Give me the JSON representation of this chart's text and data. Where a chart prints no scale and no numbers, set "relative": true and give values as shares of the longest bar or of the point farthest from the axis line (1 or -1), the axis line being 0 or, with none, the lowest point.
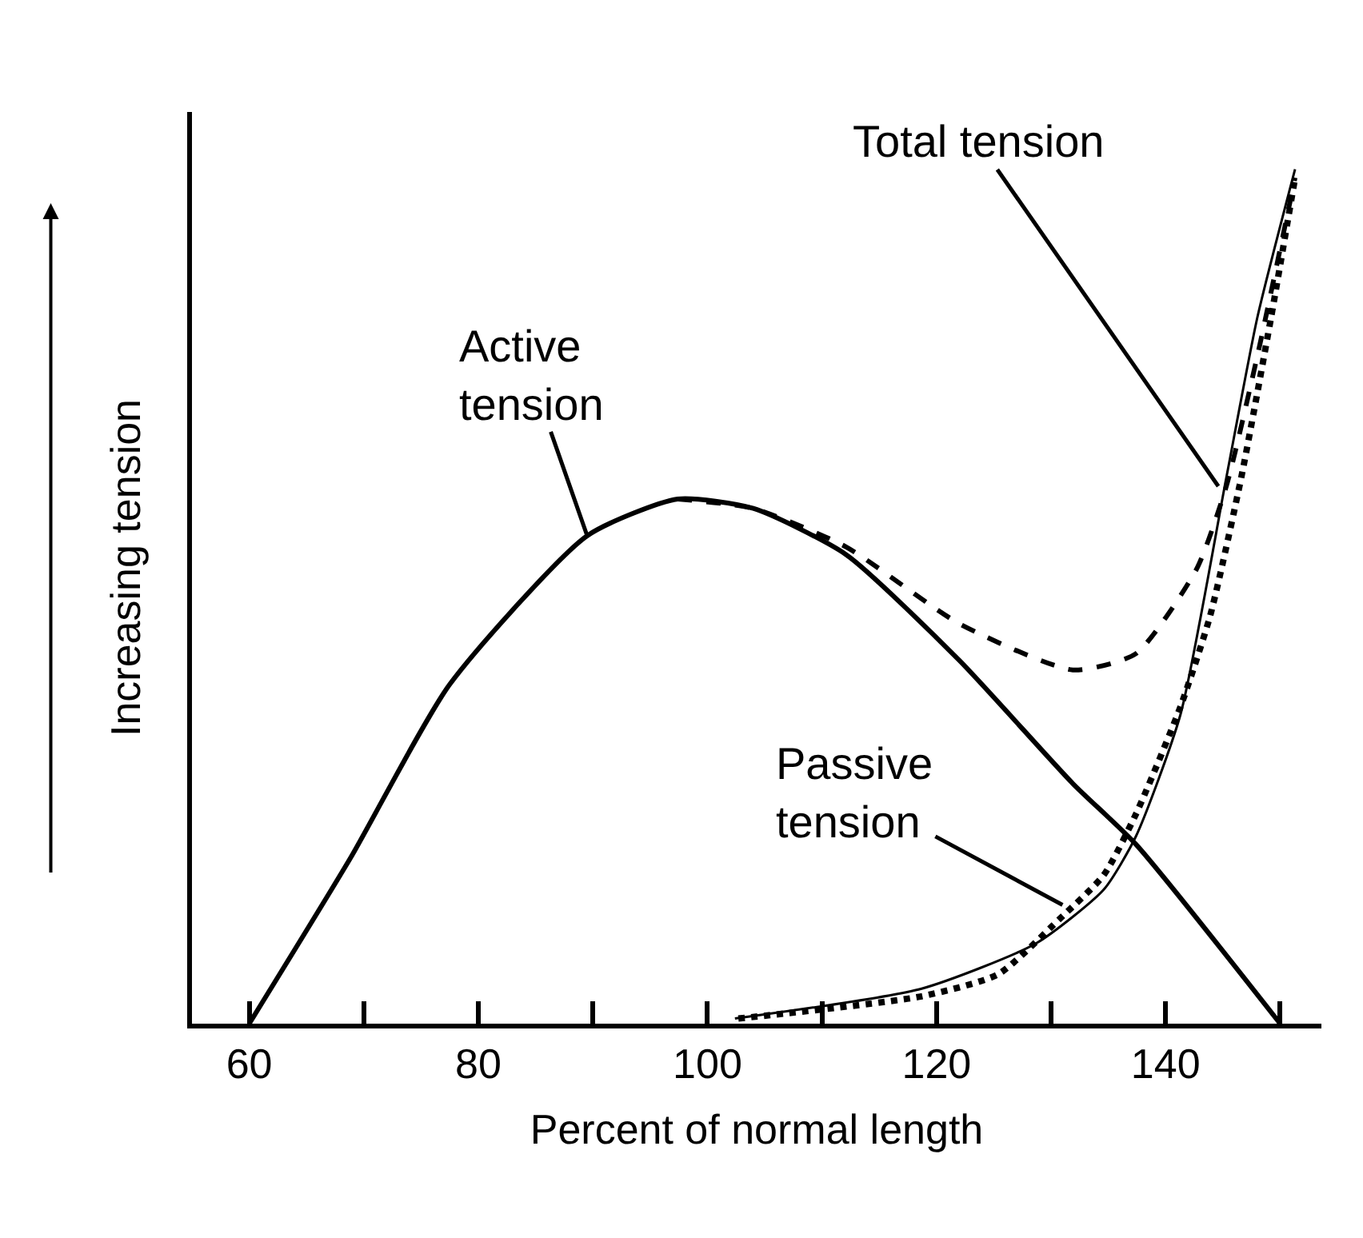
{
  "chart_data": {
    "type": "line",
    "relative": true,
    "xlabel": "Percent of normal length",
    "ylabel": "Increasing tension",
    "xlim": [
      55,
      153.6
    ],
    "xticks": [
      60,
      {
        "value": 70,
        "label": null
      },
      80,
      {
        "value": 90,
        "label": null
      },
      100,
      {
        "value": 110,
        "label": null
      },
      120,
      {
        "value": 130,
        "label": null
      },
      140,
      {
        "value": 150,
        "label": null
      }
    ],
    "marker": "none",
    "series": [
      {
        "color": "#000000",
        "line_style": "solid",
        "x": [
          60,
          68.8,
          77.5,
          89.5,
          97.4,
          104,
          112.1,
          122,
          131.9,
          137.4,
          150
        ],
        "values": [
          0,
          0.193,
          0.397,
          0.571,
          0.614,
          0.603,
          0.549,
          0.425,
          0.281,
          0.21,
          0
        ]
      },
      {
        "color": "#000000",
        "line_style": "dashed",
        "x": [
          97.4,
          104,
          112.1,
          122,
          131.9,
          137.4,
          142.7,
          145.3,
          148,
          151.3
        ],
        "values": [
          0.614,
          0.603,
          0.558,
          0.468,
          0.414,
          0.433,
          0.532,
          0.629,
          0.781,
          0.99
        ]
      },
      {
        "color": "#000000",
        "line_style": "dotted",
        "x": [
          102.7,
          118.7,
          125.4,
          130.7,
          134.6,
          137.4,
          141.3,
          143.9,
          146.6,
          149.2,
          151.3
        ],
        "values": [
          0.006,
          0.032,
          0.058,
          0.122,
          0.174,
          0.245,
          0.371,
          0.478,
          0.639,
          0.826,
          0.99
        ]
      },
      {
        "color": "#000000",
        "line_style": "solid",
        "x": [
          102.4,
          118.7,
          128.7,
          134.6,
          137.4,
          141.3,
          145.3,
          148,
          151.3
        ],
        "values": [
          0.006,
          0.041,
          0.094,
          0.157,
          0.219,
          0.362,
          0.639,
          0.826,
          1
        ]
      }
    ],
    "annotations": [
      {
        "text": "Total tension",
        "x": 144.6,
        "y": 0.629
      },
      {
        "text": "Active\ntension",
        "x": 89.5,
        "y": 0.571
      },
      {
        "text": "Passive\ntension",
        "x": 131,
        "y": 0.139
      }
    ]
  }
}
